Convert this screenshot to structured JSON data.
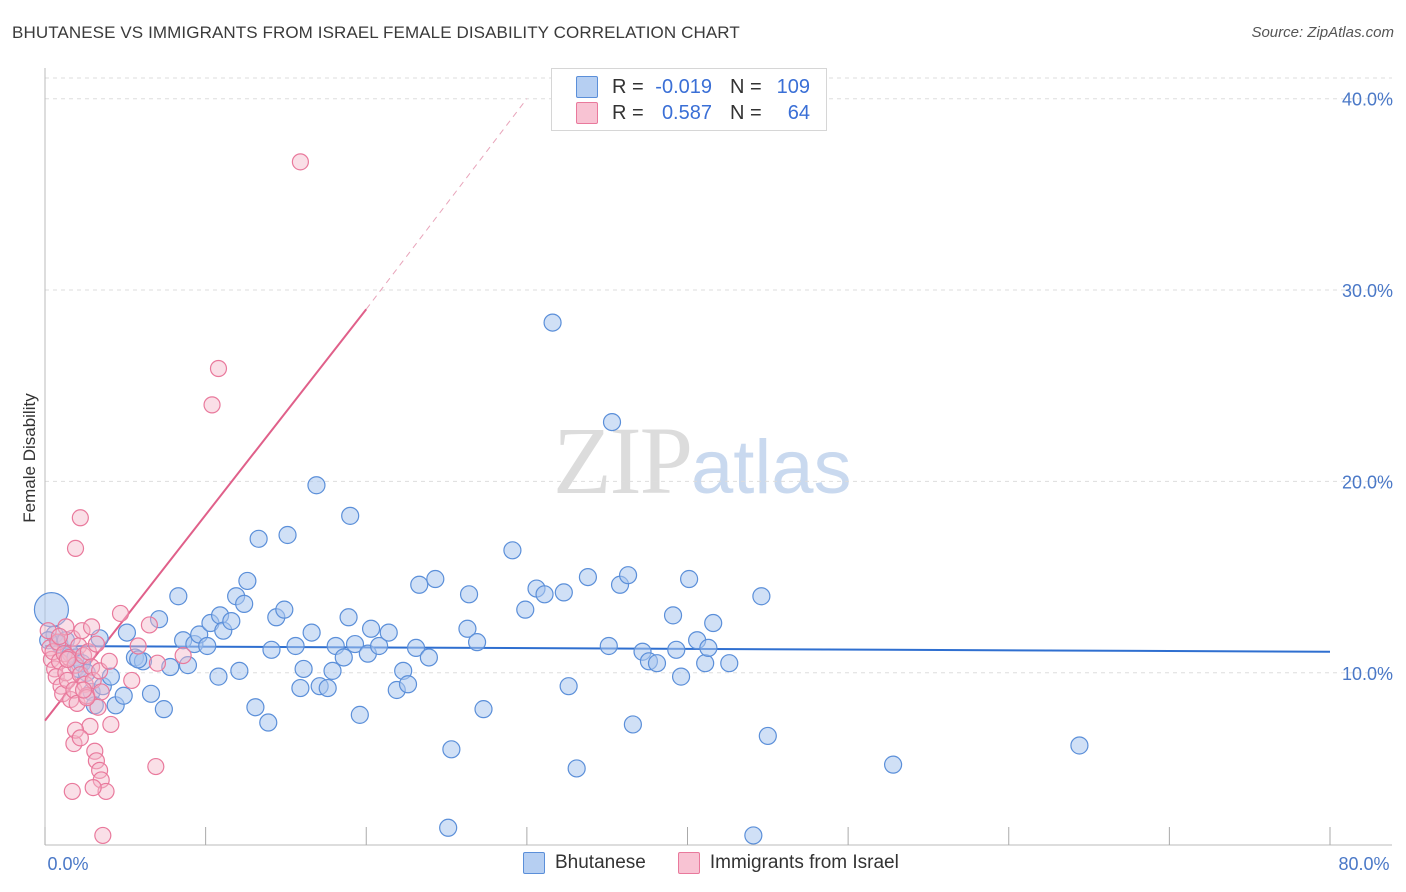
{
  "header": {
    "title": "BHUTANESE VS IMMIGRANTS FROM ISRAEL FEMALE DISABILITY CORRELATION CHART",
    "source": "Source: ZipAtlas.com"
  },
  "watermark": {
    "zip": "ZIP",
    "atlas": "atlas"
  },
  "legend": {
    "rows": [
      {
        "r_label": "R =",
        "r_value": "-0.019",
        "n_label": "N =",
        "n_value": "109"
      },
      {
        "r_label": "R =",
        "r_value": "0.587",
        "n_label": "N =",
        "n_value": "64"
      }
    ]
  },
  "colors": {
    "blue_fill": "#a9c6ef",
    "blue_stroke": "#5b8fd9",
    "blue_line": "#2f6fd0",
    "pink_fill": "#f5b7c9",
    "pink_stroke": "#e9799c",
    "pink_line": "#e0608a",
    "grid": "#dddddd",
    "axis_tick": "#4a78c7"
  },
  "chart_data": {
    "type": "scatter",
    "title": "BHUTANESE VS IMMIGRANTS FROM ISRAEL FEMALE DISABILITY CORRELATION CHART",
    "xlabel": "",
    "ylabel": "Female Disability",
    "xlim": [
      0,
      80
    ],
    "ylim": [
      1,
      41.5
    ],
    "x_tick_labels": [
      "0.0%",
      "80.0%"
    ],
    "y_ticks": [
      10,
      20,
      30,
      40
    ],
    "y_tick_labels": [
      "10.0%",
      "20.0%",
      "30.0%",
      "40.0%"
    ],
    "legend_position": "top-center",
    "series": [
      {
        "name": "Bhutanese",
        "color": "#5b8fd9",
        "trend": {
          "x0": 0,
          "y0": 11.4,
          "x1": 80,
          "y1": 11.1
        },
        "points": [
          [
            0.4,
            13.3
          ],
          [
            0.6,
            12.0
          ],
          [
            0.9,
            11.5
          ],
          [
            1.3,
            11.7
          ],
          [
            1.6,
            11.0
          ],
          [
            1.9,
            10.8
          ],
          [
            2.1,
            10.2
          ],
          [
            2.3,
            10.5
          ],
          [
            2.6,
            10.0
          ],
          [
            2.9,
            9.0
          ],
          [
            3.1,
            8.3
          ],
          [
            3.4,
            11.8
          ],
          [
            3.6,
            9.3
          ],
          [
            4.1,
            9.8
          ],
          [
            4.4,
            8.3
          ],
          [
            4.9,
            8.8
          ],
          [
            5.1,
            12.1
          ],
          [
            5.6,
            10.8
          ],
          [
            6.1,
            10.6
          ],
          [
            6.6,
            8.9
          ],
          [
            7.1,
            12.8
          ],
          [
            7.4,
            8.1
          ],
          [
            7.8,
            10.3
          ],
          [
            8.3,
            14.0
          ],
          [
            8.6,
            11.7
          ],
          [
            8.9,
            10.4
          ],
          [
            9.3,
            11.5
          ],
          [
            9.6,
            12.0
          ],
          [
            10.1,
            11.4
          ],
          [
            10.3,
            12.6
          ],
          [
            10.8,
            9.8
          ],
          [
            10.9,
            13.0
          ],
          [
            11.1,
            12.2
          ],
          [
            11.6,
            12.7
          ],
          [
            11.9,
            14.0
          ],
          [
            12.1,
            10.1
          ],
          [
            12.4,
            13.6
          ],
          [
            12.6,
            14.8
          ],
          [
            13.1,
            8.2
          ],
          [
            13.3,
            17.0
          ],
          [
            13.9,
            7.4
          ],
          [
            14.1,
            11.2
          ],
          [
            14.4,
            12.9
          ],
          [
            14.9,
            13.3
          ],
          [
            15.1,
            17.2
          ],
          [
            15.6,
            11.4
          ],
          [
            15.9,
            9.2
          ],
          [
            16.1,
            10.2
          ],
          [
            16.6,
            12.1
          ],
          [
            16.9,
            19.8
          ],
          [
            17.1,
            9.3
          ],
          [
            17.6,
            9.2
          ],
          [
            17.9,
            10.1
          ],
          [
            18.1,
            11.4
          ],
          [
            18.6,
            10.8
          ],
          [
            18.9,
            12.9
          ],
          [
            19.3,
            11.5
          ],
          [
            19.6,
            7.8
          ],
          [
            20.1,
            11.0
          ],
          [
            20.3,
            12.3
          ],
          [
            19.0,
            18.2
          ],
          [
            20.8,
            11.4
          ],
          [
            21.4,
            12.1
          ],
          [
            21.9,
            9.1
          ],
          [
            22.3,
            10.1
          ],
          [
            22.6,
            9.4
          ],
          [
            23.1,
            11.3
          ],
          [
            23.3,
            14.6
          ],
          [
            23.9,
            10.8
          ],
          [
            24.3,
            14.9
          ],
          [
            25.3,
            6.0
          ],
          [
            25.1,
            1.9
          ],
          [
            26.3,
            12.3
          ],
          [
            26.4,
            14.1
          ],
          [
            26.9,
            11.6
          ],
          [
            27.3,
            8.1
          ],
          [
            29.1,
            16.4
          ],
          [
            29.9,
            13.3
          ],
          [
            30.6,
            14.4
          ],
          [
            31.1,
            14.1
          ],
          [
            31.6,
            28.3
          ],
          [
            32.3,
            14.2
          ],
          [
            32.6,
            9.3
          ],
          [
            33.1,
            5.0
          ],
          [
            33.8,
            15.0
          ],
          [
            35.1,
            11.4
          ],
          [
            35.3,
            23.1
          ],
          [
            35.8,
            14.6
          ],
          [
            36.3,
            15.1
          ],
          [
            36.6,
            7.3
          ],
          [
            37.2,
            11.1
          ],
          [
            37.6,
            10.6
          ],
          [
            38.1,
            10.5
          ],
          [
            39.1,
            13.0
          ],
          [
            39.3,
            11.2
          ],
          [
            39.6,
            9.8
          ],
          [
            40.1,
            14.9
          ],
          [
            40.6,
            11.7
          ],
          [
            41.1,
            10.5
          ],
          [
            41.3,
            11.3
          ],
          [
            41.6,
            12.6
          ],
          [
            42.6,
            10.5
          ],
          [
            44.6,
            14.0
          ],
          [
            45.0,
            6.7
          ],
          [
            44.1,
            1.5
          ],
          [
            52.8,
            5.2
          ],
          [
            64.4,
            6.2
          ],
          [
            0.2,
            11.7
          ],
          [
            5.8,
            10.7
          ]
        ]
      },
      {
        "name": "Immigrants from Israel",
        "color": "#e9799c",
        "trend": {
          "x0": 0,
          "y0": 7.5,
          "x1": 20,
          "y1": 29.0,
          "dash_x1": 30,
          "dash_y1": 40.0
        },
        "points": [
          [
            0.2,
            12.2
          ],
          [
            0.3,
            11.3
          ],
          [
            0.4,
            10.7
          ],
          [
            0.5,
            11.1
          ],
          [
            0.6,
            10.2
          ],
          [
            0.7,
            9.8
          ],
          [
            0.8,
            11.6
          ],
          [
            0.9,
            10.6
          ],
          [
            1.0,
            9.3
          ],
          [
            1.1,
            8.9
          ],
          [
            1.2,
            11.0
          ],
          [
            1.3,
            10.0
          ],
          [
            1.4,
            9.6
          ],
          [
            1.5,
            10.8
          ],
          [
            1.6,
            8.6
          ],
          [
            1.7,
            11.8
          ],
          [
            1.8,
            9.1
          ],
          [
            1.9,
            10.4
          ],
          [
            2.0,
            8.4
          ],
          [
            2.1,
            11.4
          ],
          [
            2.2,
            9.9
          ],
          [
            2.3,
            12.2
          ],
          [
            2.4,
            10.9
          ],
          [
            2.5,
            9.4
          ],
          [
            2.6,
            8.8
          ],
          [
            2.7,
            11.1
          ],
          [
            2.8,
            7.2
          ],
          [
            2.9,
            10.3
          ],
          [
            3.0,
            9.6
          ],
          [
            3.1,
            5.9
          ],
          [
            3.2,
            11.5
          ],
          [
            3.3,
            8.2
          ],
          [
            3.4,
            10.1
          ],
          [
            3.5,
            9.0
          ],
          [
            1.8,
            6.3
          ],
          [
            1.9,
            7.0
          ],
          [
            2.2,
            6.6
          ],
          [
            3.2,
            5.4
          ],
          [
            3.4,
            4.9
          ],
          [
            3.5,
            4.4
          ],
          [
            1.7,
            3.8
          ],
          [
            3.8,
            3.8
          ],
          [
            3.6,
            1.5
          ],
          [
            3.0,
            4.0
          ],
          [
            2.2,
            18.1
          ],
          [
            1.9,
            16.5
          ],
          [
            4.7,
            13.1
          ],
          [
            5.4,
            9.6
          ],
          [
            6.5,
            12.5
          ],
          [
            6.9,
            5.1
          ],
          [
            7.0,
            10.5
          ],
          [
            8.6,
            10.9
          ],
          [
            10.4,
            24.0
          ],
          [
            10.8,
            25.9
          ],
          [
            15.9,
            36.7
          ],
          [
            4.1,
            7.3
          ],
          [
            2.6,
            8.7
          ],
          [
            1.3,
            12.4
          ],
          [
            0.9,
            11.9
          ],
          [
            2.9,
            12.4
          ],
          [
            4.0,
            10.6
          ],
          [
            1.4,
            10.7
          ],
          [
            2.4,
            9.1
          ],
          [
            5.8,
            11.4
          ]
        ]
      }
    ]
  },
  "bottom_legend": [
    {
      "label": "Bhutanese"
    },
    {
      "label": "Immigrants from Israel"
    }
  ]
}
